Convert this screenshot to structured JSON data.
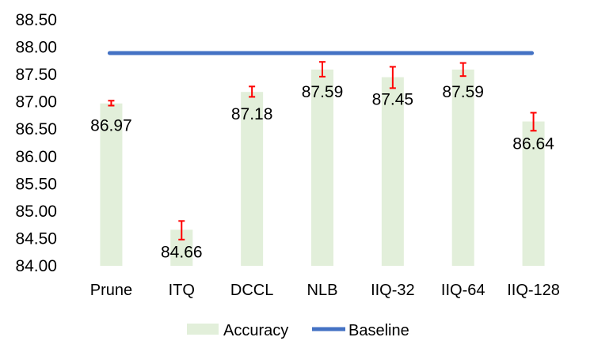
{
  "chart_data": {
    "type": "bar",
    "categories": [
      "Prune",
      "ITQ",
      "DCCL",
      "NLB",
      "IIQ-32",
      "IIQ-64",
      "IIQ-128"
    ],
    "series": [
      {
        "name": "Accuracy",
        "type": "bar",
        "color": "#e2efda",
        "values": [
          86.97,
          84.66,
          87.18,
          87.59,
          87.45,
          87.59,
          86.64
        ],
        "error_low": [
          86.93,
          84.48,
          87.09,
          87.46,
          87.25,
          87.47,
          86.47
        ],
        "error_high": [
          87.02,
          84.82,
          87.28,
          87.73,
          87.64,
          87.71,
          86.8
        ]
      },
      {
        "name": "Baseline",
        "type": "line",
        "color": "#4472c4",
        "value": 87.89
      }
    ],
    "data_labels": [
      "86.97",
      "84.66",
      "87.18",
      "87.59",
      "87.45",
      "87.59",
      "86.64"
    ],
    "y_ticks": [
      "84.00",
      "84.50",
      "85.00",
      "85.50",
      "86.00",
      "86.50",
      "87.00",
      "87.50",
      "88.00",
      "88.50"
    ],
    "ylim": [
      84.0,
      88.5
    ],
    "grid": false,
    "legend_position": "bottom",
    "error_bar_color": "#ff0000",
    "title": "",
    "xlabel": "",
    "ylabel": ""
  }
}
